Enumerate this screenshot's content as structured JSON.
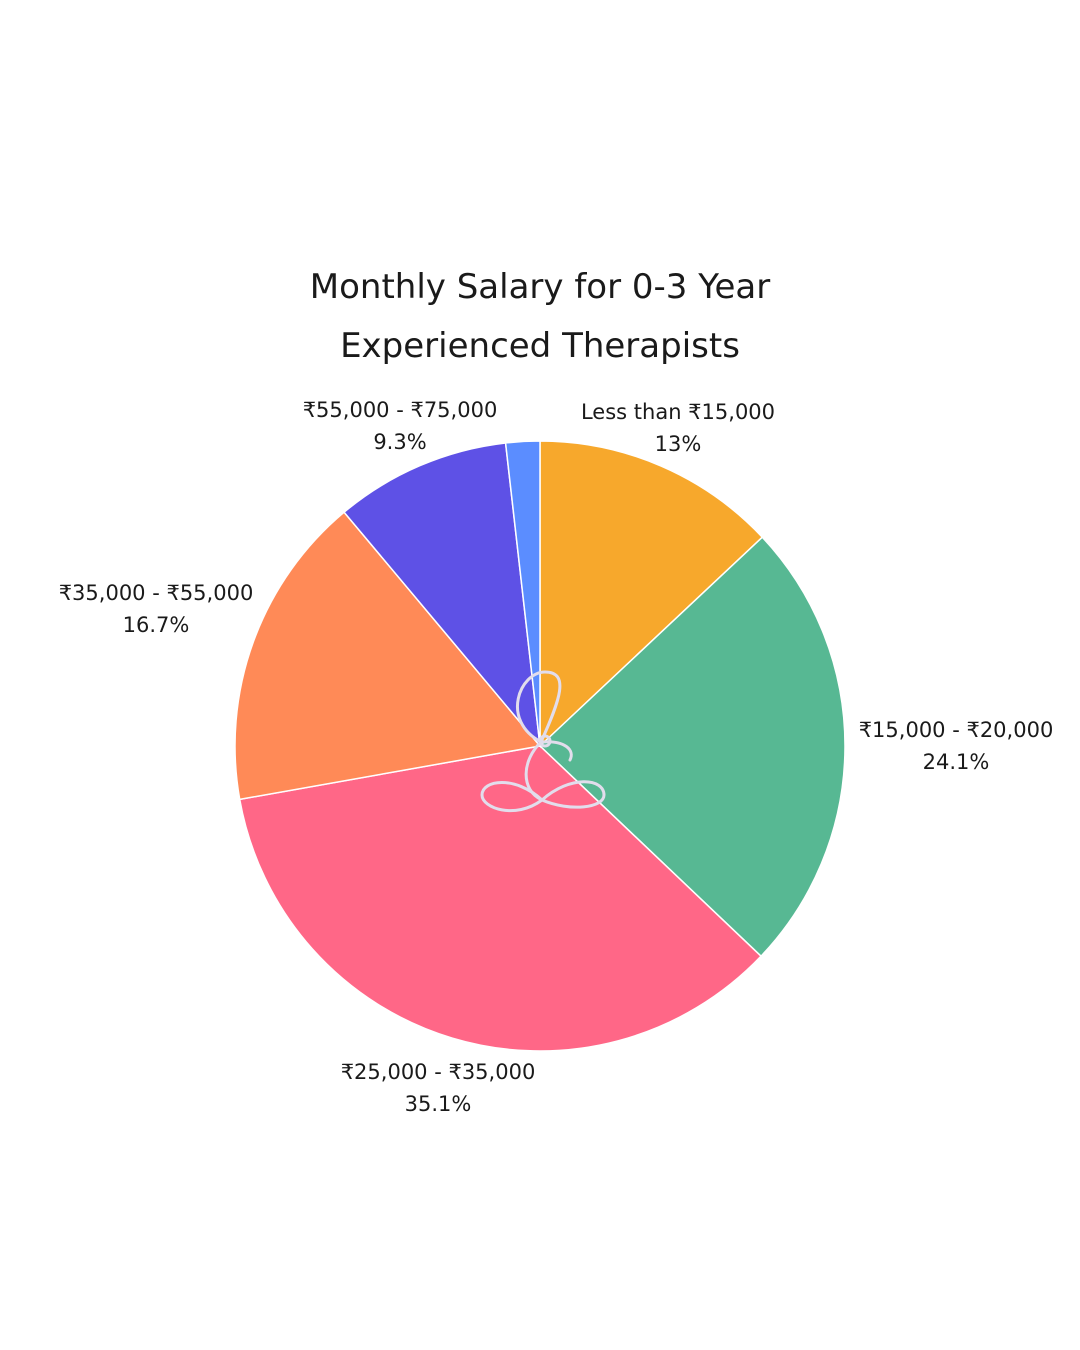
{
  "chart_data": {
    "type": "pie",
    "title": [
      "Monthly Salary for 0-3 Year",
      "Experienced Therapists"
    ],
    "start_angle_deg": 0,
    "direction": "clockwise",
    "slices": [
      {
        "label": "Less than ₹15,000",
        "value": 13.0,
        "value_label": "13%",
        "color": "#F7A82C"
      },
      {
        "label": "₹15,000 - ₹20,000",
        "value": 24.1,
        "value_label": "24.1%",
        "color": "#57B893"
      },
      {
        "label": "₹25,000 - ₹35,000",
        "value": 35.1,
        "value_label": "35.1%",
        "color": "#FF6787"
      },
      {
        "label": "₹35,000 - ₹55,000",
        "value": 16.7,
        "value_label": "16.7%",
        "color": "#FF8A57"
      },
      {
        "label": "₹55,000 - ₹75,000",
        "value": 9.3,
        "value_label": "9.3%",
        "color": "#5E51E6"
      },
      {
        "label": "",
        "value": 1.8,
        "value_label": "",
        "color": "#5B8DFF"
      }
    ],
    "watermark_color": "#E2DDEC"
  }
}
